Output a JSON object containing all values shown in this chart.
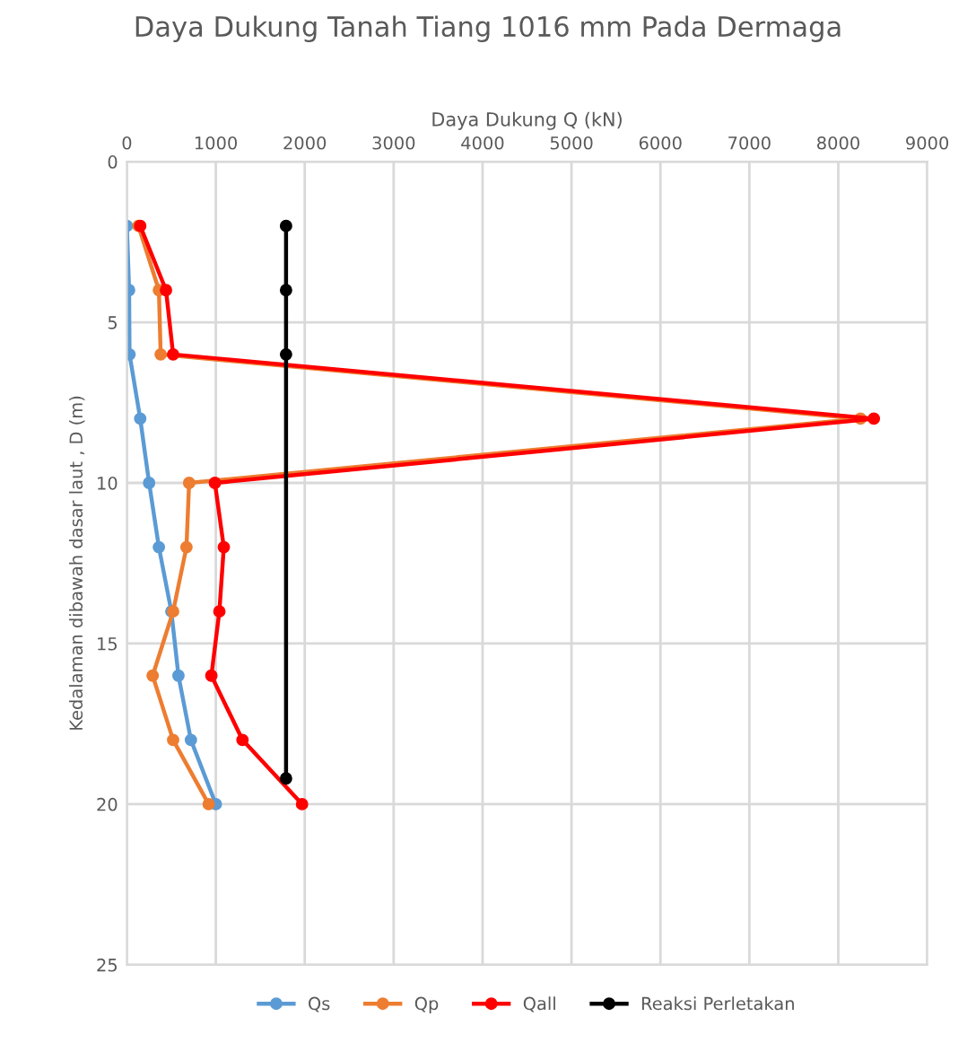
{
  "chart_data": {
    "type": "line",
    "title": "Daya Dukung Tanah Tiang 1016 mm Pada Dermaga",
    "xlabel": "Daya Dukung Q (kN)",
    "ylabel": "Kedalaman dibawah dasar laut , D (m)",
    "xlim": [
      0,
      9000
    ],
    "xticks": [
      0,
      1000,
      2000,
      3000,
      4000,
      5000,
      6000,
      7000,
      8000,
      9000
    ],
    "ylim": [
      25,
      0
    ],
    "yticks": [
      0,
      5,
      10,
      15,
      20,
      25
    ],
    "grid": true,
    "legend": "bottom",
    "marker": "circle",
    "line_style": "solid",
    "series": [
      {
        "name": "Qs",
        "color": "#5b9bd5",
        "x": [
          0,
          25,
          30,
          150,
          250,
          360,
          500,
          580,
          720,
          1000
        ],
        "values": [
          2,
          4,
          6,
          8,
          10,
          12,
          14,
          16,
          18,
          20
        ]
      },
      {
        "name": "Qp",
        "color": "#ed7d31",
        "x": [
          130,
          360,
          380,
          8250,
          700,
          670,
          520,
          290,
          520,
          920
        ],
        "values": [
          2,
          4,
          6,
          8,
          10,
          12,
          14,
          16,
          18,
          20
        ]
      },
      {
        "name": "Qall",
        "color": "#ff0000",
        "x": [
          150,
          440,
          520,
          8400,
          990,
          1090,
          1040,
          950,
          1300,
          1970
        ],
        "values": [
          2,
          4,
          6,
          8,
          10,
          12,
          14,
          16,
          18,
          20
        ]
      },
      {
        "name": "Reaksi Perletakan",
        "color": "#000000",
        "x": [
          1790,
          1790,
          1790,
          1790
        ],
        "values": [
          2,
          4,
          6,
          19.2
        ]
      }
    ]
  }
}
